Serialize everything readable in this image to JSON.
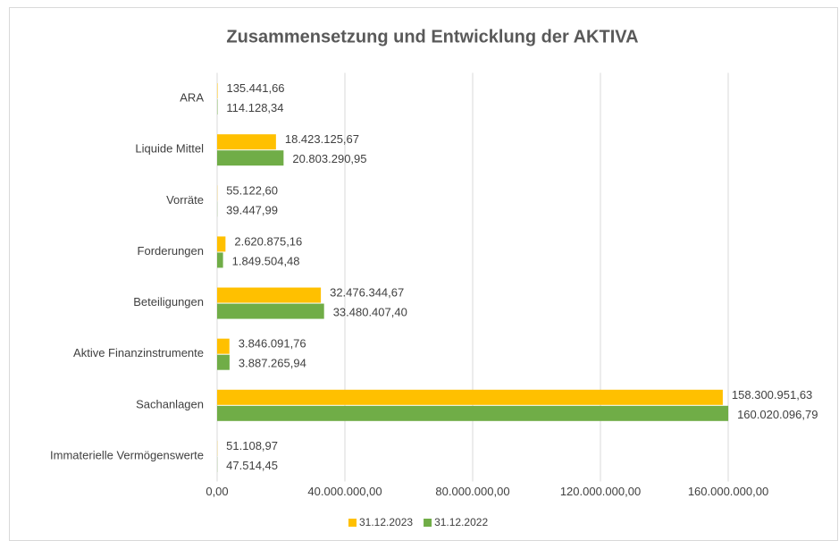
{
  "chart_data": {
    "type": "hbar",
    "title": "Zusammensetzung und Entwicklung der AKTIVA",
    "categories": [
      "ARA",
      "Liquide Mittel",
      "Vorräte",
      "Forderungen",
      "Beteiligungen",
      "Aktive Finanzinstrumente",
      "Sachanlagen",
      "Immaterielle Vermögenswerte"
    ],
    "series": [
      {
        "name": "31.12.2023",
        "color": "#ffc000",
        "values": [
          135441.66,
          18423125.67,
          55122.6,
          2620875.16,
          32476344.67,
          3846091.76,
          158300951.63,
          51108.97
        ],
        "value_labels": [
          "135.441,66",
          "18.423.125,67",
          "55.122,60",
          "2.620.875,16",
          "32.476.344,67",
          "3.846.091,76",
          "158.300.951,63",
          "51.108,97"
        ]
      },
      {
        "name": "31.12.2022",
        "color": "#70ad47",
        "values": [
          114128.34,
          20803290.95,
          39447.99,
          1849504.48,
          33480407.4,
          3887265.94,
          160020096.79,
          47514.45
        ],
        "value_labels": [
          "114.128,34",
          "20.803.290,95",
          "39.447,99",
          "1.849.504,48",
          "33.480.407,40",
          "3.887.265,94",
          "160.020.096,79",
          "47.514,45"
        ]
      }
    ],
    "xlim": [
      0,
      160000000
    ],
    "xticks": [
      {
        "value": 0,
        "label": "0,00"
      },
      {
        "value": 40000000,
        "label": "40.000.000,00"
      },
      {
        "value": 80000000,
        "label": "80.000.000,00"
      },
      {
        "value": 120000000,
        "label": "120.000.000,00"
      },
      {
        "value": 160000000,
        "label": "160.000.000,00"
      }
    ],
    "grid": true,
    "legend": "bottom"
  }
}
